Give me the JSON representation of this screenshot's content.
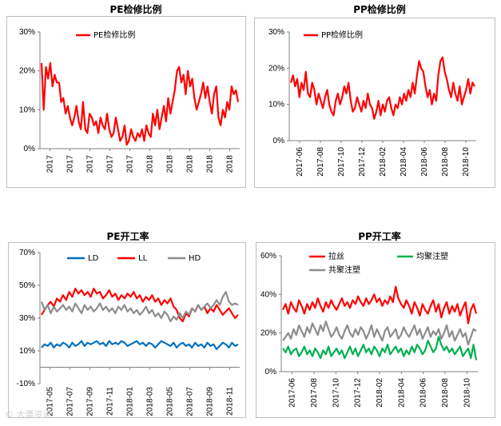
{
  "watermark": "© 大鹰资讯",
  "colors": {
    "red": "#ff0000",
    "blue": "#0070c0",
    "gray": "#8c8c8c",
    "green": "#00b050"
  },
  "chart_data": [
    {
      "id": "pe-maint",
      "type": "line",
      "title": "PE检修比例",
      "ylim": [
        0,
        30
      ],
      "yticks": [
        "0%",
        "10%",
        "20%",
        "30%"
      ],
      "xticks": [
        "2017",
        "2017",
        "2017",
        "2017",
        "2017",
        "2018",
        "2018",
        "2018",
        "2018",
        "2018"
      ],
      "legend": "top-left",
      "series": [
        {
          "name": "PE检修比例",
          "color": "#ff0000",
          "values": [
            22,
            10,
            21,
            18,
            22,
            16,
            19,
            17,
            17,
            12,
            13,
            9,
            11,
            8,
            6,
            8,
            11,
            7,
            5,
            12,
            5,
            4,
            9,
            8,
            6,
            7,
            4,
            8,
            6,
            5,
            9,
            5,
            3,
            4,
            8,
            5,
            2,
            3,
            6,
            1,
            2,
            5,
            3,
            2,
            4,
            3,
            5,
            2,
            6,
            4,
            3,
            9,
            6,
            10,
            5,
            8,
            11,
            7,
            13,
            9,
            12,
            15,
            20,
            21,
            17,
            19,
            14,
            20,
            16,
            18,
            13,
            10,
            12,
            14,
            17,
            13,
            16,
            12,
            9,
            14,
            16,
            8,
            6,
            10,
            8,
            12,
            10,
            16,
            14,
            15,
            12
          ]
        }
      ]
    },
    {
      "id": "pp-maint",
      "type": "line",
      "title": "PP检修比例",
      "ylim": [
        0,
        30
      ],
      "yticks": [
        "0%",
        "10%",
        "20%",
        "30%"
      ],
      "xticks": [
        "2017-06",
        "2017-08",
        "2017-10",
        "2017-12",
        "2018-02",
        "2018-04",
        "2018-06",
        "2018-08",
        "2018-10"
      ],
      "legend": "top-left",
      "series": [
        {
          "name": "PP检修比例",
          "color": "#ff0000",
          "values": [
            16,
            18,
            15,
            17,
            12,
            16,
            14,
            19,
            13,
            12,
            16,
            14,
            10,
            13,
            11,
            9,
            12,
            14,
            10,
            8,
            7,
            11,
            13,
            10,
            12,
            15,
            13,
            16,
            11,
            8,
            9,
            12,
            10,
            8,
            11,
            9,
            13,
            10,
            9,
            6,
            8,
            11,
            7,
            10,
            8,
            11,
            12,
            9,
            7,
            10,
            9,
            12,
            10,
            13,
            11,
            14,
            12,
            16,
            13,
            18,
            22,
            20,
            19,
            15,
            12,
            14,
            10,
            13,
            11,
            18,
            22,
            23,
            19,
            17,
            14,
            12,
            16,
            13,
            11,
            15,
            10,
            12,
            14,
            17,
            13,
            16,
            15
          ]
        }
      ]
    },
    {
      "id": "pe-oper",
      "type": "line",
      "title": "PE开工率",
      "ylim": [
        -10,
        70
      ],
      "yticks": [
        "-10%",
        "10%",
        "30%",
        "50%",
        "70%"
      ],
      "xticks": [
        "2017-05",
        "2017-07",
        "2017-09",
        "2017-11",
        "2018-01",
        "2018-03",
        "2018-05",
        "2018-07",
        "2018-09",
        "2018-11"
      ],
      "legend": "top",
      "series": [
        {
          "name": "LD",
          "color": "#0070c0",
          "values": [
            12,
            14,
            13,
            15,
            12,
            14,
            13,
            15,
            14,
            12,
            15,
            13,
            14,
            16,
            13,
            15,
            14,
            15,
            16,
            14,
            15,
            13,
            16,
            14,
            15,
            14,
            16,
            15,
            13,
            14,
            15,
            16,
            14,
            15,
            13,
            15,
            14,
            12,
            14,
            16,
            15,
            14,
            13,
            15,
            12,
            14,
            15,
            13,
            14,
            12,
            15,
            13,
            14,
            12,
            15,
            13,
            14,
            11,
            13,
            15,
            14,
            12,
            15,
            13,
            14
          ]
        },
        {
          "name": "LL",
          "color": "#ff0000",
          "values": [
            32,
            35,
            38,
            40,
            37,
            42,
            40,
            44,
            41,
            46,
            43,
            48,
            45,
            47,
            44,
            46,
            43,
            48,
            45,
            46,
            42,
            44,
            47,
            43,
            45,
            41,
            44,
            42,
            45,
            43,
            46,
            42,
            44,
            40,
            43,
            41,
            44,
            40,
            42,
            38,
            41,
            39,
            42,
            37,
            35,
            30,
            28,
            33,
            31,
            36,
            34,
            38,
            35,
            37,
            33,
            36,
            34,
            38,
            35,
            32,
            34,
            36,
            33,
            30,
            32
          ]
        },
        {
          "name": "HD",
          "color": "#8c8c8c",
          "values": [
            40,
            35,
            38,
            33,
            37,
            34,
            36,
            38,
            35,
            37,
            34,
            39,
            36,
            33,
            38,
            35,
            37,
            34,
            36,
            39,
            35,
            37,
            34,
            36,
            33,
            37,
            35,
            38,
            34,
            36,
            33,
            35,
            32,
            34,
            37,
            33,
            35,
            31,
            33,
            30,
            34,
            32,
            28,
            31,
            29,
            33,
            30,
            34,
            32,
            36,
            34,
            38,
            35,
            37,
            39,
            36,
            38,
            41,
            38,
            43,
            46,
            40,
            38,
            39,
            38
          ]
        }
      ]
    },
    {
      "id": "pp-oper",
      "type": "line",
      "title": "PP开工率",
      "ylim": [
        0,
        60
      ],
      "yticks": [
        "0%",
        "20%",
        "40%",
        "60%"
      ],
      "xticks": [
        "2017-06",
        "2017-08",
        "2017-10",
        "2017-12",
        "2018-02",
        "2018-04",
        "2018-06",
        "2018-08",
        "2018-10"
      ],
      "legend": "top",
      "series": [
        {
          "name": "拉丝",
          "color": "#ff0000",
          "values": [
            32,
            35,
            30,
            36,
            33,
            31,
            37,
            34,
            30,
            35,
            32,
            36,
            33,
            38,
            34,
            31,
            36,
            33,
            37,
            34,
            32,
            35,
            38,
            34,
            36,
            33,
            37,
            35,
            39,
            36,
            34,
            38,
            35,
            37,
            40,
            36,
            38,
            34,
            37,
            35,
            39,
            36,
            44,
            38,
            35,
            33,
            37,
            34,
            30,
            36,
            33,
            29,
            35,
            32,
            30,
            34,
            37,
            31,
            35,
            28,
            33,
            36,
            30,
            34,
            31,
            35,
            29,
            33,
            36,
            25,
            32,
            35,
            30
          ]
        },
        {
          "name": "均聚注塑",
          "color": "#00b050",
          "values": [
            12,
            10,
            13,
            9,
            11,
            12,
            8,
            10,
            13,
            9,
            11,
            8,
            12,
            10,
            7,
            11,
            9,
            13,
            8,
            10,
            12,
            9,
            11,
            7,
            10,
            13,
            9,
            12,
            8,
            11,
            14,
            10,
            12,
            9,
            13,
            11,
            8,
            12,
            10,
            14,
            9,
            11,
            13,
            10,
            12,
            8,
            11,
            9,
            13,
            10,
            14,
            12,
            9,
            11,
            16,
            13,
            10,
            12,
            18,
            14,
            11,
            13,
            10,
            12,
            9,
            11,
            13,
            8,
            10,
            12,
            7,
            14,
            6
          ]
        },
        {
          "name": "共聚注塑",
          "color": "#8c8c8c",
          "values": [
            16,
            18,
            20,
            17,
            22,
            19,
            24,
            21,
            18,
            23,
            20,
            25,
            22,
            19,
            24,
            21,
            26,
            22,
            18,
            20,
            23,
            19,
            17,
            21,
            24,
            20,
            18,
            22,
            19,
            23,
            21,
            17,
            20,
            24,
            18,
            22,
            19,
            16,
            21,
            23,
            18,
            20,
            22,
            17,
            19,
            23,
            20,
            18,
            21,
            24,
            19,
            22,
            17,
            20,
            23,
            18,
            21,
            19,
            22,
            17,
            20,
            24,
            18,
            21,
            16,
            19,
            22,
            18,
            20,
            14,
            18,
            22,
            21
          ]
        }
      ]
    }
  ]
}
